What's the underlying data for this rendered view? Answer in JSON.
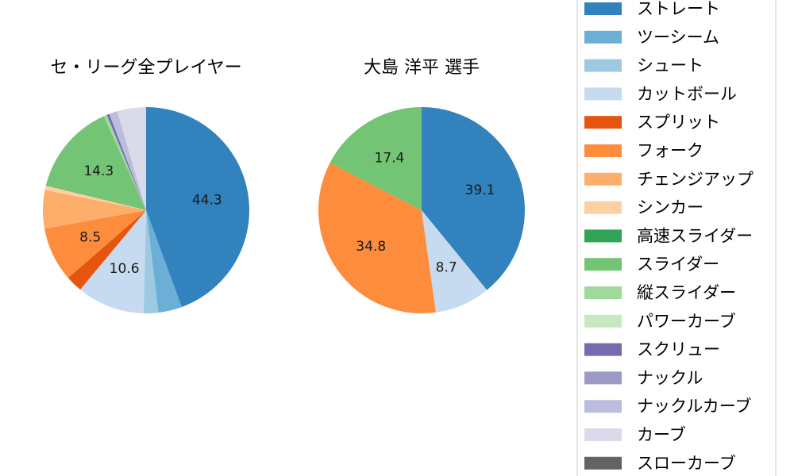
{
  "chart_data": [
    {
      "type": "pie",
      "title": "セ・リーグ全プレイヤー",
      "slices": [
        {
          "name": "ストレート",
          "value": 44.3,
          "label": "44.3"
        },
        {
          "name": "ツーシーム",
          "value": 3.7,
          "label": ""
        },
        {
          "name": "シュート",
          "value": 2.3,
          "label": ""
        },
        {
          "name": "カットボール",
          "value": 10.6,
          "label": "10.6"
        },
        {
          "name": "スプリット",
          "value": 2.6,
          "label": ""
        },
        {
          "name": "フォーク",
          "value": 8.5,
          "label": "8.5"
        },
        {
          "name": "チェンジアップ",
          "value": 6.0,
          "label": ""
        },
        {
          "name": "シンカー",
          "value": 0.7,
          "label": ""
        },
        {
          "name": "高速スライダー",
          "value": 0.1,
          "label": ""
        },
        {
          "name": "スライダー",
          "value": 14.3,
          "label": "14.3"
        },
        {
          "name": "縦スライダー",
          "value": 0.5,
          "label": ""
        },
        {
          "name": "パワーカーブ",
          "value": 0.0,
          "label": ""
        },
        {
          "name": "スクリュー",
          "value": 0.4,
          "label": ""
        },
        {
          "name": "ナックル",
          "value": 0.0,
          "label": ""
        },
        {
          "name": "ナックルカーブ",
          "value": 1.3,
          "label": ""
        },
        {
          "name": "カーブ",
          "value": 4.5,
          "label": ""
        },
        {
          "name": "スローカーブ",
          "value": 0.0,
          "label": ""
        }
      ]
    },
    {
      "type": "pie",
      "title": "大島 洋平  選手",
      "slices": [
        {
          "name": "ストレート",
          "value": 39.1,
          "label": "39.1"
        },
        {
          "name": "カットボール",
          "value": 8.7,
          "label": "8.7"
        },
        {
          "name": "フォーク",
          "value": 34.8,
          "label": "34.8"
        },
        {
          "name": "スライダー",
          "value": 17.4,
          "label": "17.4"
        }
      ]
    }
  ],
  "legend": {
    "placement": "right",
    "items": [
      {
        "label": "ストレート",
        "color": "#3182bd"
      },
      {
        "label": "ツーシーム",
        "color": "#6baed6"
      },
      {
        "label": "シュート",
        "color": "#9ecae1"
      },
      {
        "label": "カットボール",
        "color": "#c6dbef"
      },
      {
        "label": "スプリット",
        "color": "#e6550d"
      },
      {
        "label": "フォーク",
        "color": "#fd8d3c"
      },
      {
        "label": "チェンジアップ",
        "color": "#fdae6b"
      },
      {
        "label": "シンカー",
        "color": "#fdd0a2"
      },
      {
        "label": "高速スライダー",
        "color": "#31a354"
      },
      {
        "label": "スライダー",
        "color": "#74c476"
      },
      {
        "label": "縦スライダー",
        "color": "#a1d99b"
      },
      {
        "label": "パワーカーブ",
        "color": "#c7e9c0"
      },
      {
        "label": "スクリュー",
        "color": "#756bb1"
      },
      {
        "label": "ナックル",
        "color": "#9e9ac8"
      },
      {
        "label": "ナックルカーブ",
        "color": "#bcbddc"
      },
      {
        "label": "カーブ",
        "color": "#dadaeb"
      },
      {
        "label": "スローカーブ",
        "color": "#636363"
      }
    ]
  }
}
